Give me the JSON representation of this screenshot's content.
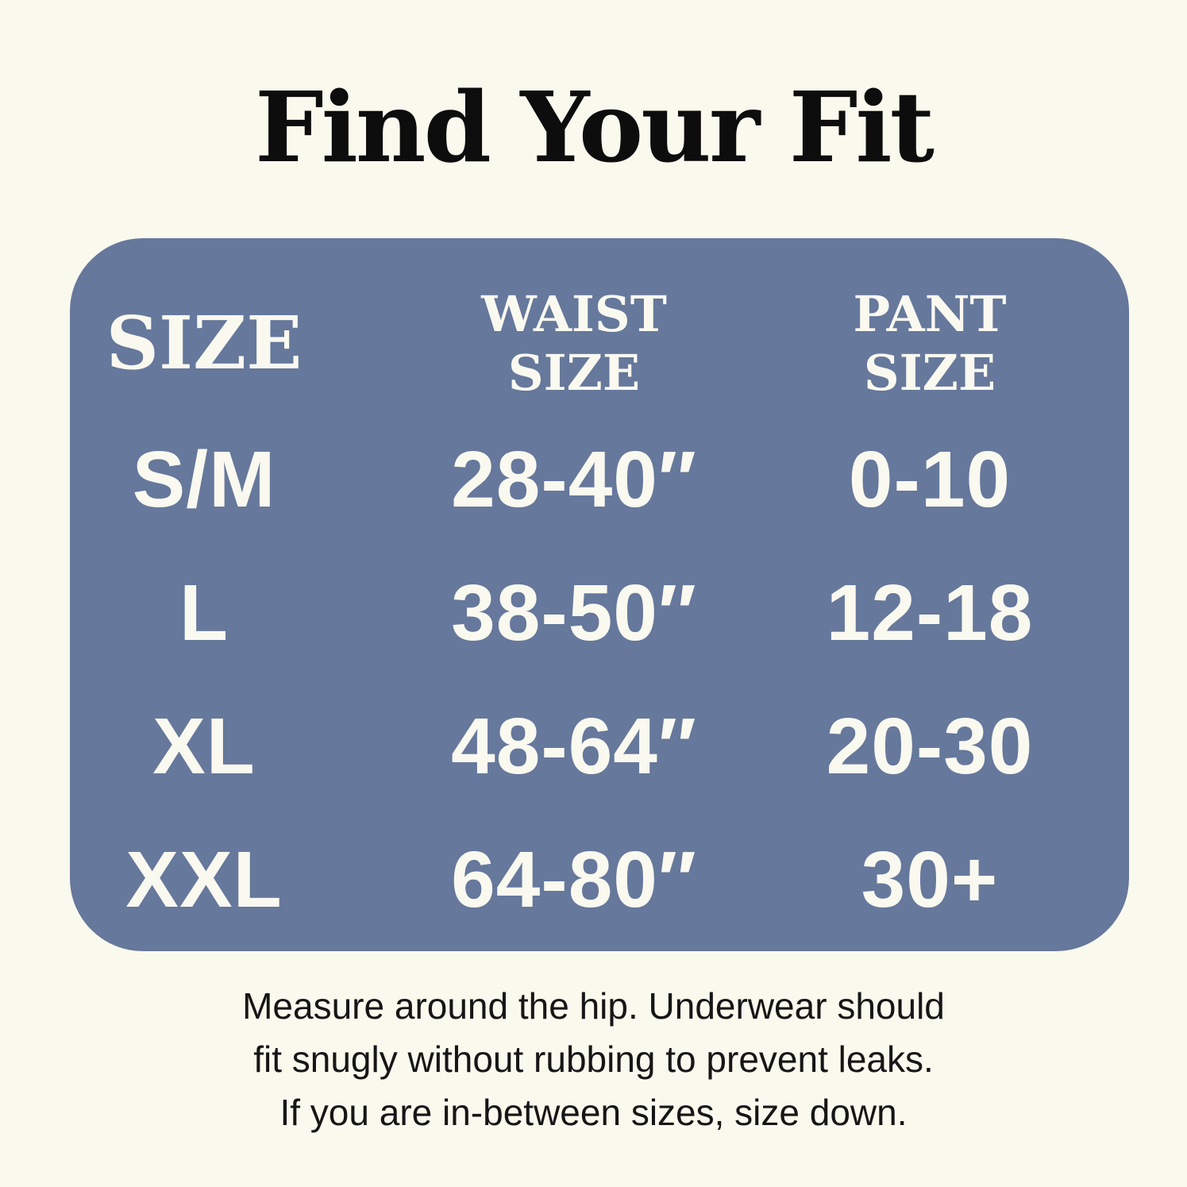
{
  "title": "Find Your Fit",
  "chart_data": {
    "type": "table",
    "title": "Find Your Fit",
    "columns": [
      "SIZE",
      "WAIST SIZE",
      "PANT SIZE"
    ],
    "rows": [
      [
        "S/M",
        "28-40″",
        "0-10"
      ],
      [
        "L",
        "38-50″",
        "12-18"
      ],
      [
        "XL",
        "48-64″",
        "20-30"
      ],
      [
        "XXL",
        "64-80″",
        "30+"
      ]
    ]
  },
  "table_display": {
    "headers": [
      {
        "line1": "SIZE",
        "line2": ""
      },
      {
        "line1": "WAIST",
        "line2": "SIZE"
      },
      {
        "line1": "PANT",
        "line2": "SIZE"
      }
    ]
  },
  "footer": {
    "lines": [
      "Measure around the hip. Underwear should",
      "fit snugly without rubbing to prevent leaks.",
      "If you are in-between sizes, size down."
    ]
  },
  "colors": {
    "background": "#FAF9EE",
    "table_background": "#66789B",
    "table_text": "#FAF9F0",
    "title_text": "#0D0D0D",
    "footer_text": "#161616"
  }
}
